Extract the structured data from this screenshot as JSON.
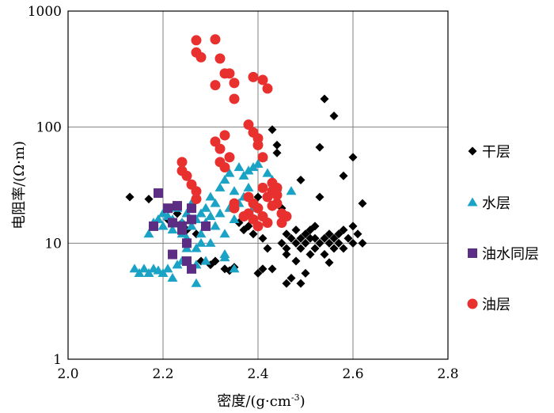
{
  "chart_data": {
    "type": "scatter",
    "xlabel": "密度/(g·cm",
    "xlabel_sup": "-3",
    "xlabel_close": ")",
    "ylabel": "电阻率/(Ω·m)",
    "xlim": [
      2.0,
      2.8
    ],
    "ylim": [
      1,
      1000
    ],
    "y_scale": "log",
    "grid": true,
    "legend_position": "right",
    "x_ticks": [
      "2.0",
      "2.2",
      "2.4",
      "2.6",
      "2.8"
    ],
    "y_ticks": [
      "1",
      "10",
      "100",
      "1000"
    ],
    "series": [
      {
        "name": "干层",
        "marker": "diamond",
        "color": "#000000",
        "points": [
          [
            2.13,
            25
          ],
          [
            2.17,
            24
          ],
          [
            2.21,
            16
          ],
          [
            2.23,
            18
          ],
          [
            2.24,
            15
          ],
          [
            2.25,
            13
          ],
          [
            2.27,
            12
          ],
          [
            2.28,
            7
          ],
          [
            2.3,
            6.5
          ],
          [
            2.31,
            7
          ],
          [
            2.33,
            6
          ],
          [
            2.34,
            5.8
          ],
          [
            2.35,
            6.2
          ],
          [
            2.36,
            15
          ],
          [
            2.37,
            13
          ],
          [
            2.38,
            14
          ],
          [
            2.39,
            12
          ],
          [
            2.4,
            25
          ],
          [
            2.41,
            11
          ],
          [
            2.42,
            15
          ],
          [
            2.42,
            9
          ],
          [
            2.43,
            95
          ],
          [
            2.44,
            70
          ],
          [
            2.44,
            60
          ],
          [
            2.43,
            6
          ],
          [
            2.4,
            5.5
          ],
          [
            2.41,
            6
          ],
          [
            2.45,
            10
          ],
          [
            2.46,
            12
          ],
          [
            2.46,
            9
          ],
          [
            2.46,
            4.5
          ],
          [
            2.47,
            5
          ],
          [
            2.47,
            11
          ],
          [
            2.48,
            10
          ],
          [
            2.48,
            13
          ],
          [
            2.49,
            9
          ],
          [
            2.49,
            11
          ],
          [
            2.5,
            10
          ],
          [
            2.5,
            12
          ],
          [
            2.51,
            8
          ],
          [
            2.51,
            11
          ],
          [
            2.52,
            9
          ],
          [
            2.52,
            14
          ],
          [
            2.53,
            10
          ],
          [
            2.53,
            25
          ],
          [
            2.53,
            67
          ],
          [
            2.49,
            35
          ],
          [
            2.5,
            5.5
          ],
          [
            2.49,
            4.5
          ],
          [
            2.54,
            8
          ],
          [
            2.54,
            11
          ],
          [
            2.55,
            10
          ],
          [
            2.55,
            12
          ],
          [
            2.56,
            9
          ],
          [
            2.56,
            11
          ],
          [
            2.57,
            10
          ],
          [
            2.57,
            12
          ],
          [
            2.58,
            9
          ],
          [
            2.58,
            13
          ],
          [
            2.59,
            11
          ],
          [
            2.6,
            10
          ],
          [
            2.6,
            14
          ],
          [
            2.61,
            12
          ],
          [
            2.62,
            10
          ],
          [
            2.62,
            22
          ],
          [
            2.6,
            55
          ],
          [
            2.58,
            38
          ],
          [
            2.56,
            125
          ],
          [
            2.54,
            175
          ],
          [
            2.55,
            6.8
          ],
          [
            2.48,
            7
          ],
          [
            2.45,
            20
          ],
          [
            2.46,
            8
          ],
          [
            2.52,
            11
          ],
          [
            2.51,
            13
          ]
        ]
      },
      {
        "name": "水层",
        "marker": "triangle",
        "color": "#1BA3C6",
        "points": [
          [
            2.14,
            6
          ],
          [
            2.15,
            5.5
          ],
          [
            2.16,
            6
          ],
          [
            2.17,
            5.5
          ],
          [
            2.18,
            6
          ],
          [
            2.19,
            5.8
          ],
          [
            2.2,
            5.5
          ],
          [
            2.21,
            6
          ],
          [
            2.22,
            5
          ],
          [
            2.23,
            6.5
          ],
          [
            2.24,
            7
          ],
          [
            2.26,
            6
          ],
          [
            2.27,
            6.5
          ],
          [
            2.29,
            7
          ],
          [
            2.33,
            7.5
          ],
          [
            2.35,
            6
          ],
          [
            2.17,
            12
          ],
          [
            2.18,
            15
          ],
          [
            2.19,
            16
          ],
          [
            2.2,
            14
          ],
          [
            2.2,
            18
          ],
          [
            2.21,
            17
          ],
          [
            2.22,
            13
          ],
          [
            2.22,
            16
          ],
          [
            2.23,
            20
          ],
          [
            2.24,
            12
          ],
          [
            2.24,
            15
          ],
          [
            2.25,
            18
          ],
          [
            2.25,
            11
          ],
          [
            2.26,
            14
          ],
          [
            2.26,
            22
          ],
          [
            2.27,
            16
          ],
          [
            2.27,
            9
          ],
          [
            2.28,
            18
          ],
          [
            2.28,
            12
          ],
          [
            2.29,
            20
          ],
          [
            2.29,
            15
          ],
          [
            2.3,
            25
          ],
          [
            2.3,
            17
          ],
          [
            2.31,
            22
          ],
          [
            2.31,
            14
          ],
          [
            2.32,
            30
          ],
          [
            2.32,
            18
          ],
          [
            2.33,
            35
          ],
          [
            2.33,
            12
          ],
          [
            2.34,
            40
          ],
          [
            2.34,
            20
          ],
          [
            2.35,
            28
          ],
          [
            2.35,
            16
          ],
          [
            2.36,
            45
          ],
          [
            2.36,
            22
          ],
          [
            2.37,
            38
          ],
          [
            2.37,
            25
          ],
          [
            2.38,
            42
          ],
          [
            2.38,
            30
          ],
          [
            2.39,
            45
          ],
          [
            2.39,
            20
          ],
          [
            2.4,
            48
          ],
          [
            2.41,
            55
          ],
          [
            2.42,
            40
          ],
          [
            2.43,
            35
          ],
          [
            2.44,
            30
          ],
          [
            2.47,
            28
          ],
          [
            2.27,
            4.5
          ],
          [
            2.33,
            8
          ],
          [
            2.3,
            10
          ],
          [
            2.25,
            9
          ],
          [
            2.28,
            10
          ]
        ]
      },
      {
        "name": "油水同层",
        "marker": "square",
        "color": "#5B2E84",
        "points": [
          [
            2.19,
            27
          ],
          [
            2.18,
            14
          ],
          [
            2.21,
            20
          ],
          [
            2.22,
            15
          ],
          [
            2.23,
            21
          ],
          [
            2.24,
            14
          ],
          [
            2.24,
            13
          ],
          [
            2.25,
            10
          ],
          [
            2.22,
            8
          ],
          [
            2.25,
            7
          ],
          [
            2.26,
            6
          ],
          [
            2.26,
            20
          ],
          [
            2.26,
            16
          ],
          [
            2.29,
            14
          ]
        ]
      },
      {
        "name": "油层",
        "marker": "circle",
        "color": "#E8312F",
        "points": [
          [
            2.27,
            560
          ],
          [
            2.31,
            570
          ],
          [
            2.27,
            440
          ],
          [
            2.28,
            400
          ],
          [
            2.31,
            230
          ],
          [
            2.33,
            290
          ],
          [
            2.32,
            390
          ],
          [
            2.34,
            290
          ],
          [
            2.35,
            240
          ],
          [
            2.35,
            175
          ],
          [
            2.39,
            270
          ],
          [
            2.41,
            255
          ],
          [
            2.42,
            215
          ],
          [
            2.38,
            105
          ],
          [
            2.39,
            90
          ],
          [
            2.4,
            80
          ],
          [
            2.4,
            70
          ],
          [
            2.41,
            55
          ],
          [
            2.31,
            75
          ],
          [
            2.32,
            65
          ],
          [
            2.33,
            85
          ],
          [
            2.34,
            55
          ],
          [
            2.32,
            50
          ],
          [
            2.33,
            45
          ],
          [
            2.24,
            50
          ],
          [
            2.24,
            42
          ],
          [
            2.25,
            38
          ],
          [
            2.26,
            32
          ],
          [
            2.27,
            28
          ],
          [
            2.27,
            24
          ],
          [
            2.35,
            22
          ],
          [
            2.35,
            20
          ],
          [
            2.38,
            18
          ],
          [
            2.39,
            16
          ],
          [
            2.4,
            20
          ],
          [
            2.41,
            17
          ],
          [
            2.42,
            25
          ],
          [
            2.43,
            28
          ],
          [
            2.44,
            30
          ],
          [
            2.45,
            18
          ],
          [
            2.43,
            21
          ],
          [
            2.42,
            15
          ],
          [
            2.44,
            22
          ],
          [
            2.45,
            15
          ],
          [
            2.41,
            30
          ],
          [
            2.43,
            33
          ],
          [
            2.38,
            25
          ],
          [
            2.37,
            17
          ],
          [
            2.39,
            22
          ],
          [
            2.44,
            26
          ],
          [
            2.46,
            17
          ],
          [
            2.4,
            14
          ]
        ]
      }
    ]
  }
}
